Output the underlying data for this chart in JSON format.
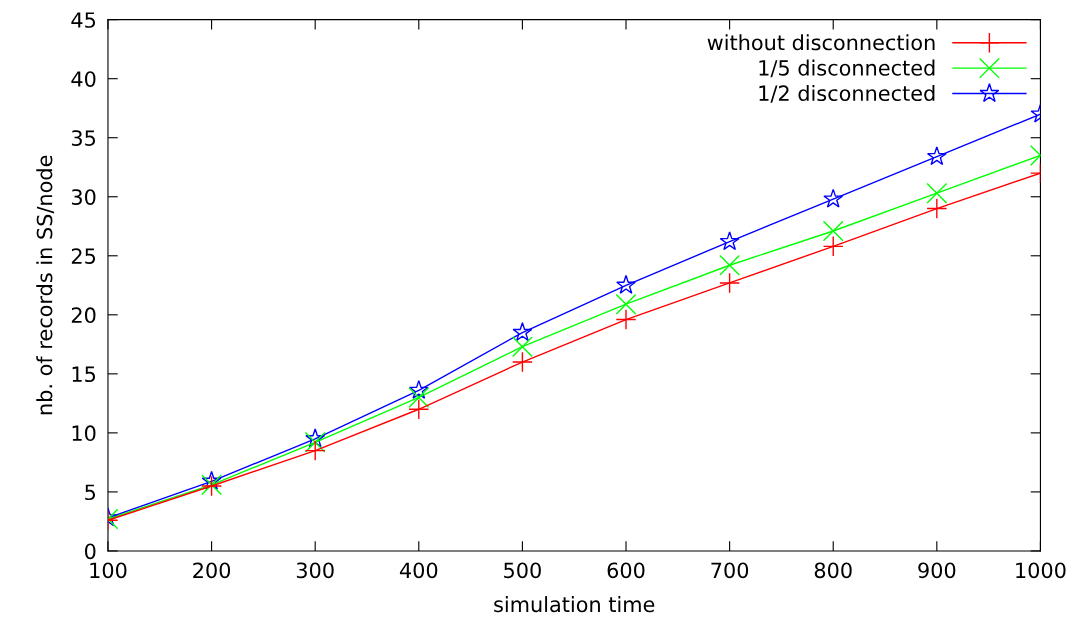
{
  "chart_data": {
    "type": "line",
    "xlabel": "simulation time",
    "ylabel": "nb. of records in SS/node",
    "x": [
      100,
      200,
      300,
      400,
      500,
      600,
      700,
      800,
      900,
      1000
    ],
    "series": [
      {
        "name": "without disconnection",
        "color": "#ff0000",
        "marker": "plus",
        "values": [
          2.6,
          5.5,
          8.5,
          12.0,
          16.0,
          19.6,
          22.7,
          25.8,
          29.0,
          32.0
        ]
      },
      {
        "name": "1/5 disconnected",
        "color": "#00ff00",
        "marker": "cross",
        "values": [
          2.7,
          5.6,
          9.2,
          13.0,
          17.3,
          20.9,
          24.2,
          27.1,
          30.3,
          33.5
        ]
      },
      {
        "name": "1/2 disconnected",
        "color": "#0000ff",
        "marker": "star",
        "values": [
          2.8,
          5.9,
          9.5,
          13.6,
          18.5,
          22.5,
          26.2,
          29.8,
          33.4,
          37.0
        ]
      }
    ],
    "xlim": [
      100,
      1000
    ],
    "xticks": [
      100,
      200,
      300,
      400,
      500,
      600,
      700,
      800,
      900,
      1000
    ],
    "ylim": [
      0,
      45
    ],
    "yticks": [
      0,
      5,
      10,
      15,
      20,
      25,
      30,
      35,
      40,
      45
    ],
    "grid": false,
    "legend": "top right",
    "line_style": "solid"
  }
}
